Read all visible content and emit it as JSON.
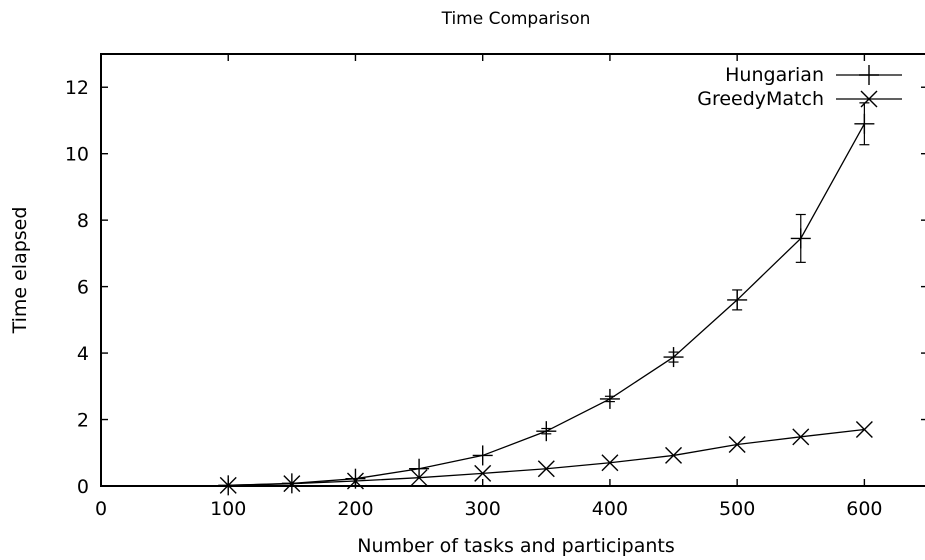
{
  "chart_data": {
    "type": "line",
    "title": "Time Comparison",
    "xlabel": "Number of tasks and participants",
    "ylabel": "Time elapsed",
    "xlim": [
      0,
      650
    ],
    "ylim": [
      0,
      13
    ],
    "xticks": [
      0,
      100,
      200,
      300,
      400,
      500,
      600
    ],
    "yticks": [
      0,
      2,
      4,
      6,
      8,
      10,
      12
    ],
    "grid": false,
    "legend_position": "top-right",
    "x": [
      100,
      150,
      200,
      250,
      300,
      350,
      400,
      450,
      500,
      550,
      600
    ],
    "series": [
      {
        "name": "Hungarian",
        "marker": "plus",
        "values": [
          0.02,
          0.08,
          0.22,
          0.52,
          0.92,
          1.65,
          2.62,
          3.88,
          5.6,
          7.45,
          10.9
        ],
        "error": [
          0,
          0,
          0,
          0,
          0,
          0.08,
          0.08,
          0.15,
          0.3,
          0.72,
          0.63
        ]
      },
      {
        "name": "GreedyMatch",
        "marker": "cross",
        "values": [
          0.02,
          0.07,
          0.15,
          0.25,
          0.38,
          0.52,
          0.7,
          0.92,
          1.25,
          1.48,
          1.7
        ],
        "error": [
          0,
          0,
          0,
          0,
          0,
          0,
          0,
          0,
          0,
          0,
          0
        ]
      }
    ]
  }
}
